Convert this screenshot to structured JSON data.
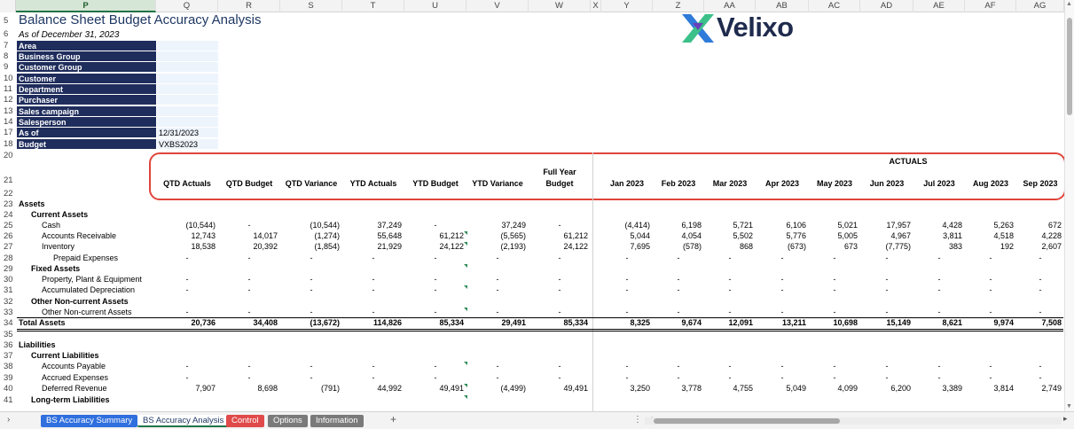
{
  "columns": [
    "P",
    "Q",
    "R",
    "S",
    "T",
    "U",
    "V",
    "W",
    "X",
    "Y",
    "Z",
    "AA",
    "AB",
    "AC",
    "AD",
    "AE",
    "AF",
    "AG"
  ],
  "selected_column": "P",
  "title": "Balance Sheet Budget Accuracy Analysis",
  "subtitle": "As of December 31, 2023",
  "logo": {
    "text": "Velixo",
    "icon": "velixo-x-logo-icon"
  },
  "filters": [
    {
      "row": "7",
      "label": "Area",
      "value": ""
    },
    {
      "row": "8",
      "label": "Business Group",
      "value": ""
    },
    {
      "row": "9",
      "label": "Customer Group",
      "value": ""
    },
    {
      "row": "10",
      "label": "Customer",
      "value": ""
    },
    {
      "row": "11",
      "label": "Department",
      "value": ""
    },
    {
      "row": "12",
      "label": "Purchaser",
      "value": ""
    },
    {
      "row": "13",
      "label": "Sales campaign",
      "value": ""
    },
    {
      "row": "14",
      "label": "Salesperson",
      "value": ""
    },
    {
      "row": "17",
      "label": "As of",
      "value": "12/31/2023"
    },
    {
      "row": "18",
      "label": "Budget",
      "value": "VXBS2023"
    }
  ],
  "row_numbers": [
    "5",
    "6",
    "7",
    "8",
    "9",
    "10",
    "11",
    "12",
    "13",
    "14",
    "17",
    "18",
    "20",
    "21",
    "22",
    "23",
    "24",
    "25",
    "26",
    "27",
    "28",
    "29",
    "30",
    "31",
    "32",
    "33",
    "34",
    "35",
    "36",
    "37",
    "38",
    "39",
    "40",
    "41"
  ],
  "actuals_label": "ACTUALS",
  "headers": [
    "QTD Actuals",
    "QTD Budget",
    "QTD Variance",
    "YTD Actuals",
    "YTD Budget",
    "YTD Variance",
    "Full Year Budget",
    "Jan 2023",
    "Feb 2023",
    "Mar 2023",
    "Apr 2023",
    "May 2023",
    "Jun 2023",
    "Jul 2023",
    "Aug 2023",
    "Sep 2023"
  ],
  "rows": [
    {
      "label": "Assets",
      "indent": 0,
      "bold": true,
      "values": []
    },
    {
      "label": "Current Assets",
      "indent": 1,
      "bold": true,
      "values": []
    },
    {
      "label": "Cash",
      "indent": 2,
      "values": [
        "(10,544)",
        "-",
        "(10,544)",
        "37,249",
        "-",
        "37,249",
        "-",
        "(4,414)",
        "6,198",
        "5,721",
        "6,106",
        "5,021",
        "17,957",
        "4,428",
        "5,263",
        "672"
      ]
    },
    {
      "label": "Accounts Receivable",
      "indent": 2,
      "values": [
        "12,743",
        "14,017",
        "(1,274)",
        "55,648",
        "61,212",
        "(5,565)",
        "61,212",
        "5,044",
        "4,054",
        "5,502",
        "5,776",
        "5,005",
        "4,967",
        "3,811",
        "4,518",
        "4,228"
      ]
    },
    {
      "label": "Inventory",
      "indent": 2,
      "values": [
        "18,538",
        "20,392",
        "(1,854)",
        "21,929",
        "24,122",
        "(2,193)",
        "24,122",
        "7,695",
        "(578)",
        "868",
        "(673)",
        "673",
        "(7,775)",
        "383",
        "192",
        "2,607"
      ]
    },
    {
      "label": "Prepaid Expenses",
      "indent": 3,
      "values": [
        "-",
        "-",
        "-",
        "-",
        "-",
        "-",
        "-",
        "-",
        "-",
        "-",
        "-",
        "-",
        "-",
        "-",
        "-",
        "-"
      ]
    },
    {
      "label": "Fixed Assets",
      "indent": 1,
      "bold": true,
      "values": []
    },
    {
      "label": "Property, Plant & Equipment",
      "indent": 2,
      "values": [
        "-",
        "-",
        "-",
        "-",
        "-",
        "-",
        "-",
        "-",
        "-",
        "-",
        "-",
        "-",
        "-",
        "-",
        "-",
        "-"
      ]
    },
    {
      "label": "Accumulated Depreciation",
      "indent": 2,
      "values": [
        "-",
        "-",
        "-",
        "-",
        "-",
        "-",
        "-",
        "-",
        "-",
        "-",
        "-",
        "-",
        "-",
        "-",
        "-",
        "-"
      ]
    },
    {
      "label": "Other Non-current Assets",
      "indent": 1,
      "bold": true,
      "values": []
    },
    {
      "label": "Other Non-current Assets",
      "indent": 2,
      "values": [
        "-",
        "-",
        "-",
        "-",
        "-",
        "-",
        "-",
        "-",
        "-",
        "-",
        "-",
        "-",
        "-",
        "-",
        "-",
        "-"
      ]
    },
    {
      "label": "Total Assets",
      "indent": 0,
      "bold": true,
      "total": true,
      "values": [
        "20,736",
        "34,408",
        "(13,672)",
        "114,826",
        "85,334",
        "29,491",
        "85,334",
        "8,325",
        "9,674",
        "12,091",
        "13,211",
        "10,698",
        "15,149",
        "8,621",
        "9,974",
        "7,508"
      ]
    },
    {
      "label": "",
      "indent": 0,
      "values": []
    },
    {
      "label": "Liabilities",
      "indent": 0,
      "bold": true,
      "values": []
    },
    {
      "label": "Current Liabilities",
      "indent": 1,
      "bold": true,
      "values": []
    },
    {
      "label": "Accounts Payable",
      "indent": 2,
      "values": [
        "-",
        "-",
        "-",
        "-",
        "-",
        "-",
        "-",
        "-",
        "-",
        "-",
        "-",
        "-",
        "-",
        "-",
        "-",
        "-"
      ]
    },
    {
      "label": "Accrued Expenses",
      "indent": 2,
      "values": [
        "-",
        "-",
        "-",
        "-",
        "-",
        "-",
        "-",
        "-",
        "-",
        "-",
        "-",
        "-",
        "-",
        "-",
        "-",
        "-"
      ]
    },
    {
      "label": "Deferred Revenue",
      "indent": 2,
      "values": [
        "7,907",
        "8,698",
        "(791)",
        "44,992",
        "49,491",
        "(4,499)",
        "49,491",
        "3,250",
        "3,778",
        "4,755",
        "5,049",
        "4,099",
        "6,200",
        "3,389",
        "3,814",
        "2,749"
      ]
    },
    {
      "label": "Long-term Liabilities",
      "indent": 1,
      "bold": true,
      "values": []
    }
  ],
  "sheet_tabs": [
    {
      "label": "BS Accuracy Summary",
      "color": "#2f6fde",
      "active": false
    },
    {
      "label": "BS Accuracy Analysis",
      "color": "#ffffff",
      "active": true
    },
    {
      "label": "Control",
      "color": "#e04a4a",
      "active": false
    },
    {
      "label": "Options",
      "color": "#7a7a7a",
      "active": false
    },
    {
      "label": "Information",
      "color": "#7a7a7a",
      "active": false
    }
  ],
  "add_sheet_label": "+",
  "colors": {
    "filter_bg": "#1f2d5c",
    "accent_red": "#e0443b",
    "excel_green": "#217346"
  }
}
